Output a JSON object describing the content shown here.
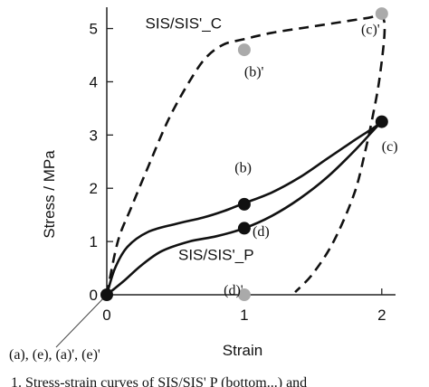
{
  "chart_data": {
    "type": "line",
    "xlabel": "Strain",
    "ylabel": "Stress / MPa",
    "xlim": [
      0,
      2.1
    ],
    "ylim": [
      0,
      5.4
    ],
    "x_ticks": [
      "0",
      "1",
      "2"
    ],
    "y_ticks": [
      "0",
      "1",
      "2",
      "3",
      "4",
      "5"
    ],
    "grid": false,
    "series": [
      {
        "name": "SIS/SIS'_C",
        "style": "dashed",
        "color": "#111111",
        "x": [
          0,
          0.08,
          0.18,
          0.3,
          0.45,
          0.6,
          0.72,
          0.85,
          1.0,
          1.2,
          1.45,
          1.7,
          1.9,
          2.0,
          2.02,
          1.98,
          1.93,
          1.88,
          1.8,
          1.65,
          1.5,
          1.37
        ],
        "y": [
          0,
          1.0,
          1.65,
          2.4,
          3.3,
          4.0,
          4.45,
          4.7,
          4.8,
          4.92,
          5.02,
          5.12,
          5.2,
          5.23,
          4.9,
          4.0,
          3.3,
          2.7,
          1.9,
          1.0,
          0.4,
          0.05
        ]
      },
      {
        "name": "SIS/SIS'_P",
        "style": "solid",
        "color": "#111111",
        "x": [
          0,
          0.06,
          0.15,
          0.3,
          0.5,
          0.7,
          0.85,
          1.0,
          1.2,
          1.4,
          1.6,
          1.8,
          1.95,
          2.0,
          1.95,
          1.8,
          1.6,
          1.4,
          1.2,
          1.0,
          0.8,
          0.6,
          0.4,
          0.25,
          0.12,
          0
        ],
        "y": [
          0,
          0.5,
          0.9,
          1.18,
          1.33,
          1.45,
          1.57,
          1.72,
          1.92,
          2.2,
          2.55,
          2.9,
          3.15,
          3.25,
          3.12,
          2.7,
          2.2,
          1.8,
          1.48,
          1.25,
          1.1,
          1.0,
          0.82,
          0.55,
          0.25,
          0
        ]
      }
    ],
    "points": [
      {
        "label": "(b)",
        "x": 1,
        "y": 1.7,
        "color": "#111111"
      },
      {
        "label": "(d)",
        "x": 1,
        "y": 1.25,
        "color": "#111111"
      },
      {
        "label": "(c)",
        "x": 2,
        "y": 3.25,
        "color": "#111111"
      },
      {
        "label": "(a), (e), (a)', (e)'",
        "x": 0,
        "y": 0,
        "color": "#111111"
      },
      {
        "label": "(b)'",
        "x": 1,
        "y": 4.6,
        "color": "#aaaaaa"
      },
      {
        "label": "(c)'",
        "x": 2,
        "y": 5.28,
        "color": "#aaaaaa"
      },
      {
        "label": "(d)'",
        "x": 1,
        "y": 0,
        "color": "#aaaaaa"
      }
    ],
    "annotations": [
      {
        "text": "SIS/SIS'_C",
        "x": 0.28,
        "y": 5.0
      },
      {
        "text": "SIS/SIS'_P",
        "x": 0.52,
        "y": 0.65
      },
      {
        "text": "(b)",
        "x": 0.93,
        "y": 2.3
      },
      {
        "text": "(d)",
        "x": 1.06,
        "y": 1.1
      },
      {
        "text": "(c)",
        "x": 2.0,
        "y": 2.7
      },
      {
        "text": "(b)'",
        "x": 1.0,
        "y": 4.1
      },
      {
        "text": "(c)'",
        "x": 1.85,
        "y": 4.9
      },
      {
        "text": "(d)'",
        "x": 0.85,
        "y": 0.0
      }
    ],
    "callout": {
      "text": "(a), (e), (a)', (e)'"
    },
    "caption": "1. Stress-strain curves of SIS/SIS' P (bottom...) and"
  }
}
